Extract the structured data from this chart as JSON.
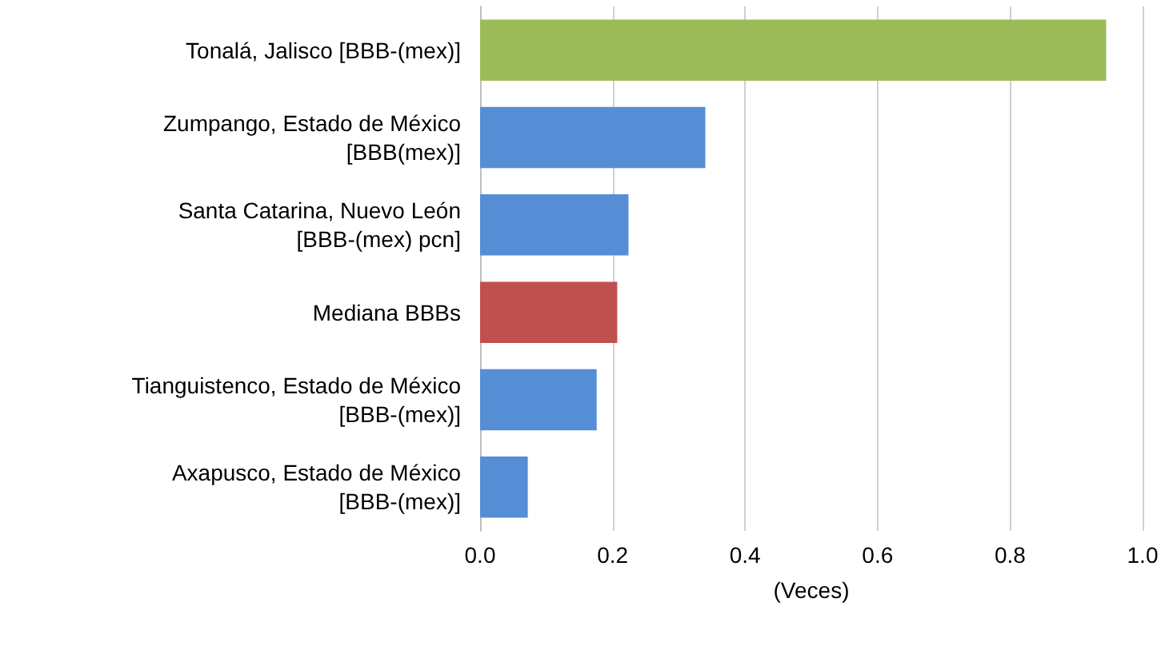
{
  "chart_data": {
    "type": "bar",
    "orientation": "horizontal",
    "xlabel": "(Veces)",
    "categories": [
      "Tonalá, Jalisco [BBB-(mex)]",
      "Zumpango, Estado de México\n[BBB(mex)]",
      "Santa Catarina, Nuevo León\n[BBB-(mex) pcn]",
      "Mediana BBBs",
      "Tianguistenco, Estado de México\n[BBB-(mex)]",
      "Axapusco, Estado de México\n[BBB-(mex)]"
    ],
    "values": [
      0.945,
      0.34,
      0.224,
      0.207,
      0.176,
      0.072
    ],
    "colors": [
      "#9bbb59",
      "#558ed5",
      "#558ed5",
      "#c0504d",
      "#558ed5",
      "#558ed5"
    ],
    "xlim": [
      0,
      1
    ],
    "xticks": [
      {
        "value": 0,
        "label": "0.0"
      },
      {
        "value": 0.2,
        "label": "0.2"
      },
      {
        "value": 0.4,
        "label": "0.4"
      },
      {
        "value": 0.6,
        "label": "0.6"
      },
      {
        "value": 0.8,
        "label": "0.8"
      },
      {
        "value": 1,
        "label": "1.0"
      }
    ],
    "grid": "x"
  }
}
